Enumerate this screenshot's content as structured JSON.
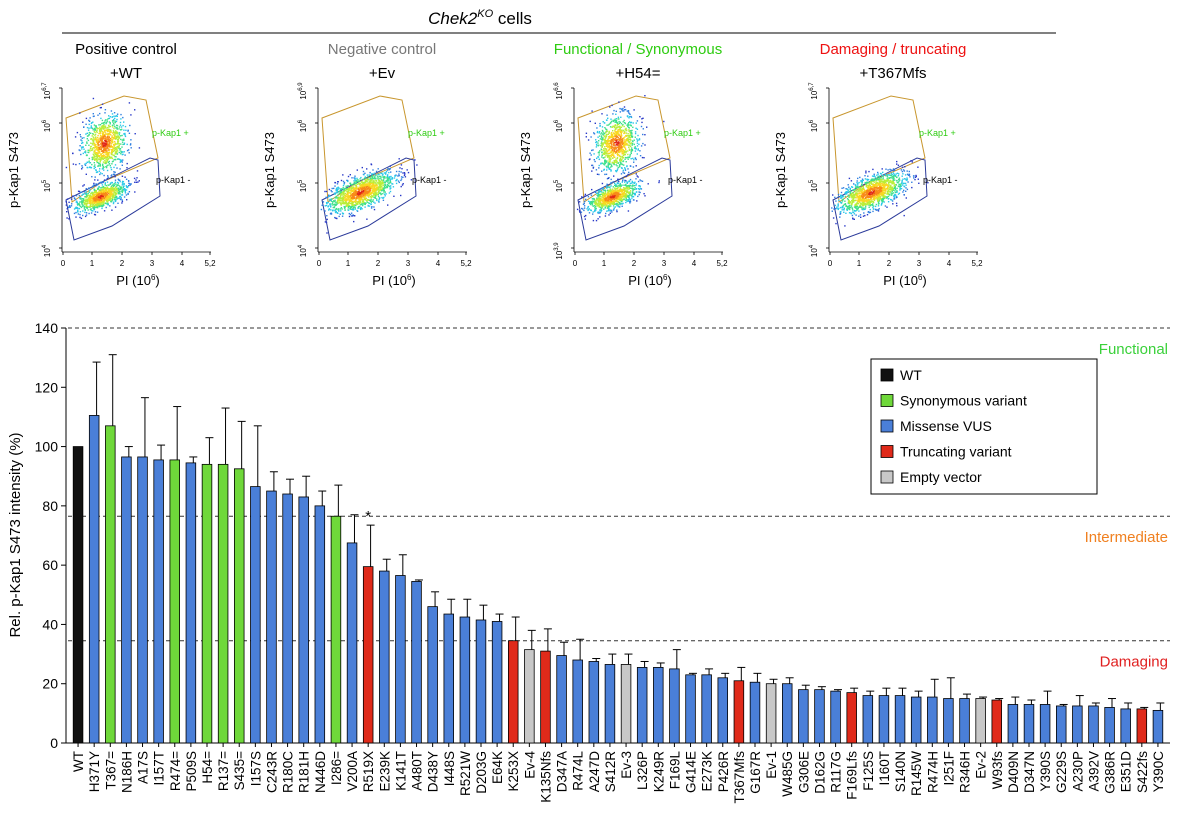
{
  "header": {
    "gene": "Chek2",
    "superscript": "KO",
    "suffix": " cells"
  },
  "flow_panels": [
    {
      "title": "Positive control",
      "title_color": "#000000",
      "sample": "+WT",
      "y_top_tick": "6,7",
      "y_bottom_tick": "4",
      "pattern": "two_pop"
    },
    {
      "title": "Negative control",
      "title_color": "#777777",
      "sample": "+Ev",
      "y_top_tick": "6,9",
      "y_bottom_tick": "4",
      "pattern": "one_pop"
    },
    {
      "title": "Functional / Synonymous",
      "title_color": "#2ecc11",
      "sample": "+H54=",
      "y_top_tick": "6,6",
      "y_bottom_tick": "3,9",
      "pattern": "two_pop"
    },
    {
      "title": "Damaging / truncating",
      "title_color": "#ee1111",
      "sample": "+T367Mfs",
      "y_top_tick": "6,7",
      "y_bottom_tick": "4",
      "pattern": "one_pop"
    }
  ],
  "flow_common": {
    "ylabel": "p-Kap1 S473",
    "xlabel_main": "PI (10",
    "xlabel_sup": "6",
    "xlabel_end": ")",
    "xticks": [
      "0",
      "1",
      "2",
      "3",
      "4",
      "5,2"
    ],
    "ytick_base": "10",
    "ytick_mid1": "5",
    "ytick_mid2": "6",
    "gate_pos": "p-Kap1 +",
    "gate_neg": "p-Kap1 -",
    "gate_pos_color": "#2ecc11",
    "gate_pos_outline": "#c8962d",
    "gate_neg_outline": "#2b3a9a"
  },
  "chart_data": {
    "type": "bar",
    "ylabel": "Rel. p-Kap1 S473 intensity (%)",
    "ylim": [
      0,
      140
    ],
    "yticks": [
      0,
      20,
      40,
      60,
      80,
      100,
      120,
      140
    ],
    "categories": [
      "WT",
      "H371Y",
      "T367=",
      "N186H",
      "A17S",
      "I157T",
      "R474=",
      "P509S",
      "H54=",
      "R137=",
      "S435=",
      "I157S",
      "C243R",
      "R180C",
      "R181H",
      "N446D",
      "I286=",
      "V200A",
      "R519X",
      "E239K",
      "K141T",
      "A480T",
      "D438Y",
      "I448S",
      "R521W",
      "D203G",
      "E64K",
      "K253X",
      "Ev-4",
      "K135Nfs",
      "D347A",
      "R474L",
      "A247D",
      "S412R",
      "Ev-3",
      "L326P",
      "K249R",
      "F169L",
      "G414E",
      "E273K",
      "P426R",
      "T367Mfs",
      "G167R",
      "Ev-1",
      "W485G",
      "G306E",
      "D162G",
      "R117G",
      "F169Lfs",
      "F125S",
      "I160T",
      "S140N",
      "R145W",
      "R474H",
      "I251F",
      "R346H",
      "Ev-2",
      "W93fs",
      "D409N",
      "D347N",
      "Y390S",
      "G229S",
      "A230P",
      "A392V",
      "G386R",
      "E351D",
      "S422fs",
      "Y390C"
    ],
    "values": [
      100,
      110.5,
      107,
      96.5,
      96.5,
      95.5,
      95.5,
      94.5,
      94,
      94,
      92.5,
      86.5,
      85,
      84,
      83,
      80,
      76.5,
      67.5,
      59.5,
      58,
      56.5,
      54.5,
      46,
      43.5,
      42.5,
      41.5,
      41,
      34.5,
      31.5,
      31,
      29.5,
      28,
      27.5,
      26.5,
      26.5,
      25.5,
      25.5,
      25,
      23,
      23,
      22,
      21,
      20.5,
      20,
      20,
      18,
      18,
      17.5,
      17,
      16,
      16,
      16,
      15.5,
      15.5,
      15,
      15,
      15,
      14.5,
      13,
      13,
      13,
      12.5,
      12.5,
      12.5,
      12,
      11.5,
      11.5,
      11
    ],
    "errors": [
      0,
      18,
      24,
      3.5,
      20,
      5,
      18,
      2,
      9,
      19,
      16,
      20.5,
      6.5,
      5,
      7,
      5,
      10.5,
      9.5,
      14,
      4,
      7,
      0.5,
      5,
      5,
      6,
      5,
      2.5,
      8,
      6.5,
      7.5,
      4.5,
      7,
      1,
      3.5,
      3.5,
      2,
      1.5,
      6.5,
      0.5,
      2,
      1.5,
      4.5,
      3,
      1.5,
      2,
      1.5,
      1,
      0.5,
      1.5,
      1.5,
      2.5,
      2.5,
      2,
      6,
      7,
      1.5,
      0.5,
      0.5,
      2.5,
      1.5,
      4.5,
      0.5,
      3.5,
      1,
      3,
      2,
      0.5,
      2.5
    ],
    "classes": [
      "wt",
      "mis",
      "syn",
      "mis",
      "mis",
      "mis",
      "syn",
      "mis",
      "syn",
      "syn",
      "syn",
      "mis",
      "mis",
      "mis",
      "mis",
      "mis",
      "syn",
      "mis",
      "trn",
      "mis",
      "mis",
      "mis",
      "mis",
      "mis",
      "mis",
      "mis",
      "mis",
      "trn",
      "emp",
      "trn",
      "mis",
      "mis",
      "mis",
      "mis",
      "emp",
      "mis",
      "mis",
      "mis",
      "mis",
      "mis",
      "mis",
      "trn",
      "mis",
      "emp",
      "mis",
      "mis",
      "mis",
      "mis",
      "trn",
      "mis",
      "mis",
      "mis",
      "mis",
      "mis",
      "mis",
      "mis",
      "emp",
      "trn",
      "mis",
      "mis",
      "mis",
      "mis",
      "mis",
      "mis",
      "mis",
      "mis",
      "trn",
      "mis"
    ],
    "class_colors": {
      "wt": "#111111",
      "syn": "#6fd83a",
      "mis": "#4a7fd8",
      "trn": "#e02a1a",
      "emp": "#c8c8c8"
    },
    "legend": [
      {
        "key": "wt",
        "label": "WT"
      },
      {
        "key": "syn",
        "label": "Synonymous variant"
      },
      {
        "key": "mis",
        "label": "Missense VUS"
      },
      {
        "key": "trn",
        "label": "Truncating variant"
      },
      {
        "key": "emp",
        "label": "Empty vector"
      }
    ],
    "thresholds": [
      {
        "value": 140,
        "label": "Functional",
        "color": "#3ad13a"
      },
      {
        "value": 76.5,
        "label": "Intermediate",
        "color": "#f08020"
      },
      {
        "value": 34.5,
        "label": "Damaging",
        "color": "#e02020"
      }
    ],
    "annotation": {
      "text": "*",
      "category": "R519X"
    }
  }
}
